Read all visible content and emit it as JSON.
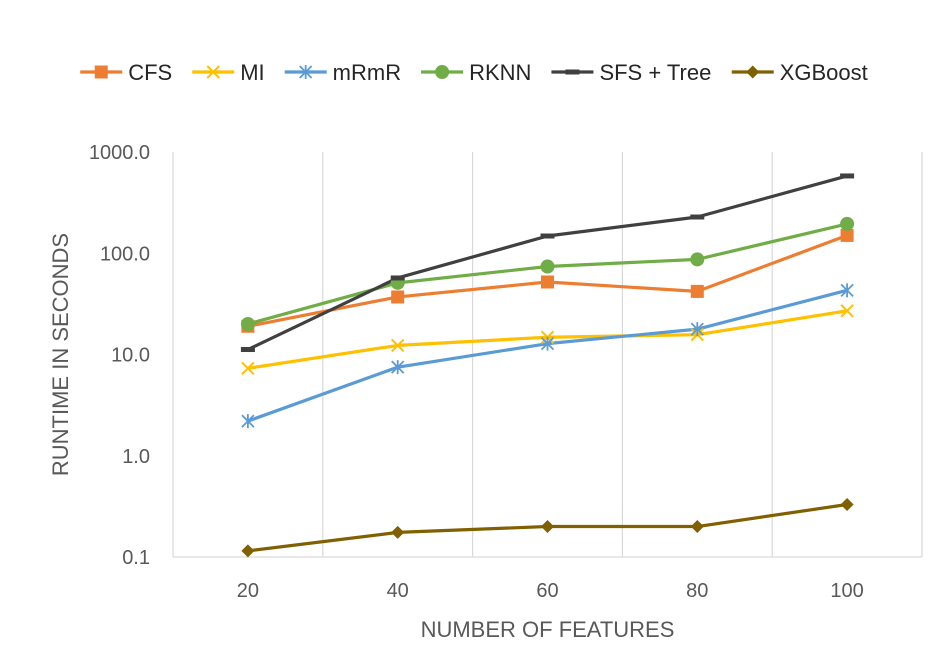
{
  "chart_data": {
    "type": "line",
    "title": "",
    "xlabel": "NUMBER OF FEATURES",
    "ylabel": "RUNTIME IN SECONDS",
    "yscale": "log",
    "ylim": [
      0.1,
      1000
    ],
    "yticks": [
      0.1,
      1,
      10,
      100,
      1000
    ],
    "ytick_labels": [
      "0.1",
      "1.0",
      "10.0",
      "100.0",
      "1000.0"
    ],
    "categories": [
      "20",
      "40",
      "60",
      "80",
      "100"
    ],
    "grid": "vertical",
    "legend_position": "top",
    "series": [
      {
        "name": "CFS",
        "color": "#ED7D31",
        "marker": "square",
        "values": [
          19,
          37,
          52,
          42,
          150
        ]
      },
      {
        "name": "MI",
        "color": "#FFC000",
        "marker": "x",
        "values": [
          7.3,
          12.3,
          14.8,
          15.7,
          27
        ]
      },
      {
        "name": "mRmR",
        "color": "#5B9BD5",
        "marker": "star",
        "values": [
          2.2,
          7.5,
          12.8,
          17.8,
          43
        ]
      },
      {
        "name": "RKNN",
        "color": "#70AD47",
        "marker": "circle",
        "values": [
          20,
          51,
          74,
          87,
          195
        ]
      },
      {
        "name": "SFS + Tree",
        "color": "#404040",
        "marker": "dash",
        "values": [
          11.2,
          57,
          148,
          228,
          580
        ]
      },
      {
        "name": "XGBoost",
        "color": "#806000",
        "marker": "diamond",
        "values": [
          0.115,
          0.175,
          0.2,
          0.2,
          0.33
        ]
      }
    ]
  }
}
